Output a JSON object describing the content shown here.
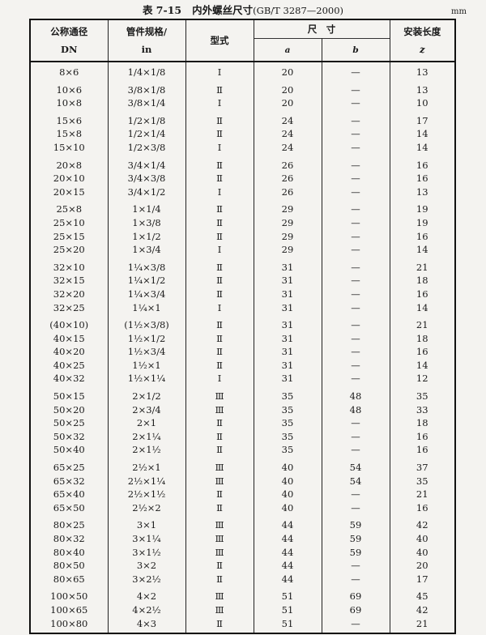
{
  "title": {
    "label": "表 7-15",
    "text": "内外螺丝尺寸",
    "standard": "(GB/T 3287—2000)"
  },
  "unit": "mm",
  "headers": {
    "dn_line1": "公称通径",
    "dn_line2": "DN",
    "size_line1": "管件规格/",
    "size_line2": "in",
    "type": "型式",
    "dimension": "尺　寸",
    "a": "a",
    "b": "b",
    "length_line1": "安装长度",
    "length_line2": "z"
  },
  "groups": [
    [
      [
        "8×6",
        "1/4×1/8",
        "Ⅰ",
        "20",
        "—",
        "13"
      ]
    ],
    [
      [
        "10×6",
        "3/8×1/8",
        "Ⅱ",
        "20",
        "—",
        "13"
      ],
      [
        "10×8",
        "3/8×1/4",
        "Ⅰ",
        "20",
        "—",
        "10"
      ]
    ],
    [
      [
        "15×6",
        "1/2×1/8",
        "Ⅱ",
        "24",
        "—",
        "17"
      ],
      [
        "15×8",
        "1/2×1/4",
        "Ⅱ",
        "24",
        "—",
        "14"
      ],
      [
        "15×10",
        "1/2×3/8",
        "Ⅰ",
        "24",
        "—",
        "14"
      ]
    ],
    [
      [
        "20×8",
        "3/4×1/4",
        "Ⅱ",
        "26",
        "—",
        "16"
      ],
      [
        "20×10",
        "3/4×3/8",
        "Ⅱ",
        "26",
        "—",
        "16"
      ],
      [
        "20×15",
        "3/4×1/2",
        "Ⅰ",
        "26",
        "—",
        "13"
      ]
    ],
    [
      [
        "25×8",
        "1×1/4",
        "Ⅱ",
        "29",
        "—",
        "19"
      ],
      [
        "25×10",
        "1×3/8",
        "Ⅱ",
        "29",
        "—",
        "19"
      ],
      [
        "25×15",
        "1×1/2",
        "Ⅱ",
        "29",
        "—",
        "16"
      ],
      [
        "25×20",
        "1×3/4",
        "Ⅰ",
        "29",
        "—",
        "14"
      ]
    ],
    [
      [
        "32×10",
        "1¼×3/8",
        "Ⅱ",
        "31",
        "—",
        "21"
      ],
      [
        "32×15",
        "1¼×1/2",
        "Ⅱ",
        "31",
        "—",
        "18"
      ],
      [
        "32×20",
        "1¼×3/4",
        "Ⅱ",
        "31",
        "—",
        "16"
      ],
      [
        "32×25",
        "1¼×1",
        "Ⅰ",
        "31",
        "—",
        "14"
      ]
    ],
    [
      [
        "(40×10)",
        "(1½×3/8)",
        "Ⅱ",
        "31",
        "—",
        "21"
      ],
      [
        "40×15",
        "1½×1/2",
        "Ⅱ",
        "31",
        "—",
        "18"
      ],
      [
        "40×20",
        "1½×3/4",
        "Ⅱ",
        "31",
        "—",
        "16"
      ],
      [
        "40×25",
        "1½×1",
        "Ⅱ",
        "31",
        "—",
        "14"
      ],
      [
        "40×32",
        "1½×1¼",
        "Ⅰ",
        "31",
        "—",
        "12"
      ]
    ],
    [
      [
        "50×15",
        "2×1/2",
        "Ⅲ",
        "35",
        "48",
        "35"
      ],
      [
        "50×20",
        "2×3/4",
        "Ⅲ",
        "35",
        "48",
        "33"
      ],
      [
        "50×25",
        "2×1",
        "Ⅱ",
        "35",
        "—",
        "18"
      ],
      [
        "50×32",
        "2×1¼",
        "Ⅱ",
        "35",
        "—",
        "16"
      ],
      [
        "50×40",
        "2×1½",
        "Ⅱ",
        "35",
        "—",
        "16"
      ]
    ],
    [
      [
        "65×25",
        "2½×1",
        "Ⅲ",
        "40",
        "54",
        "37"
      ],
      [
        "65×32",
        "2½×1¼",
        "Ⅲ",
        "40",
        "54",
        "35"
      ],
      [
        "65×40",
        "2½×1½",
        "Ⅱ",
        "40",
        "—",
        "21"
      ],
      [
        "65×50",
        "2½×2",
        "Ⅱ",
        "40",
        "—",
        "16"
      ]
    ],
    [
      [
        "80×25",
        "3×1",
        "Ⅲ",
        "44",
        "59",
        "42"
      ],
      [
        "80×32",
        "3×1¼",
        "Ⅲ",
        "44",
        "59",
        "40"
      ],
      [
        "80×40",
        "3×1½",
        "Ⅲ",
        "44",
        "59",
        "40"
      ],
      [
        "80×50",
        "3×2",
        "Ⅱ",
        "44",
        "—",
        "20"
      ],
      [
        "80×65",
        "3×2½",
        "Ⅱ",
        "44",
        "—",
        "17"
      ]
    ],
    [
      [
        "100×50",
        "4×2",
        "Ⅲ",
        "51",
        "69",
        "45"
      ],
      [
        "100×65",
        "4×2½",
        "Ⅲ",
        "51",
        "69",
        "42"
      ],
      [
        "100×80",
        "4×3",
        "Ⅱ",
        "51",
        "—",
        "21"
      ]
    ]
  ]
}
